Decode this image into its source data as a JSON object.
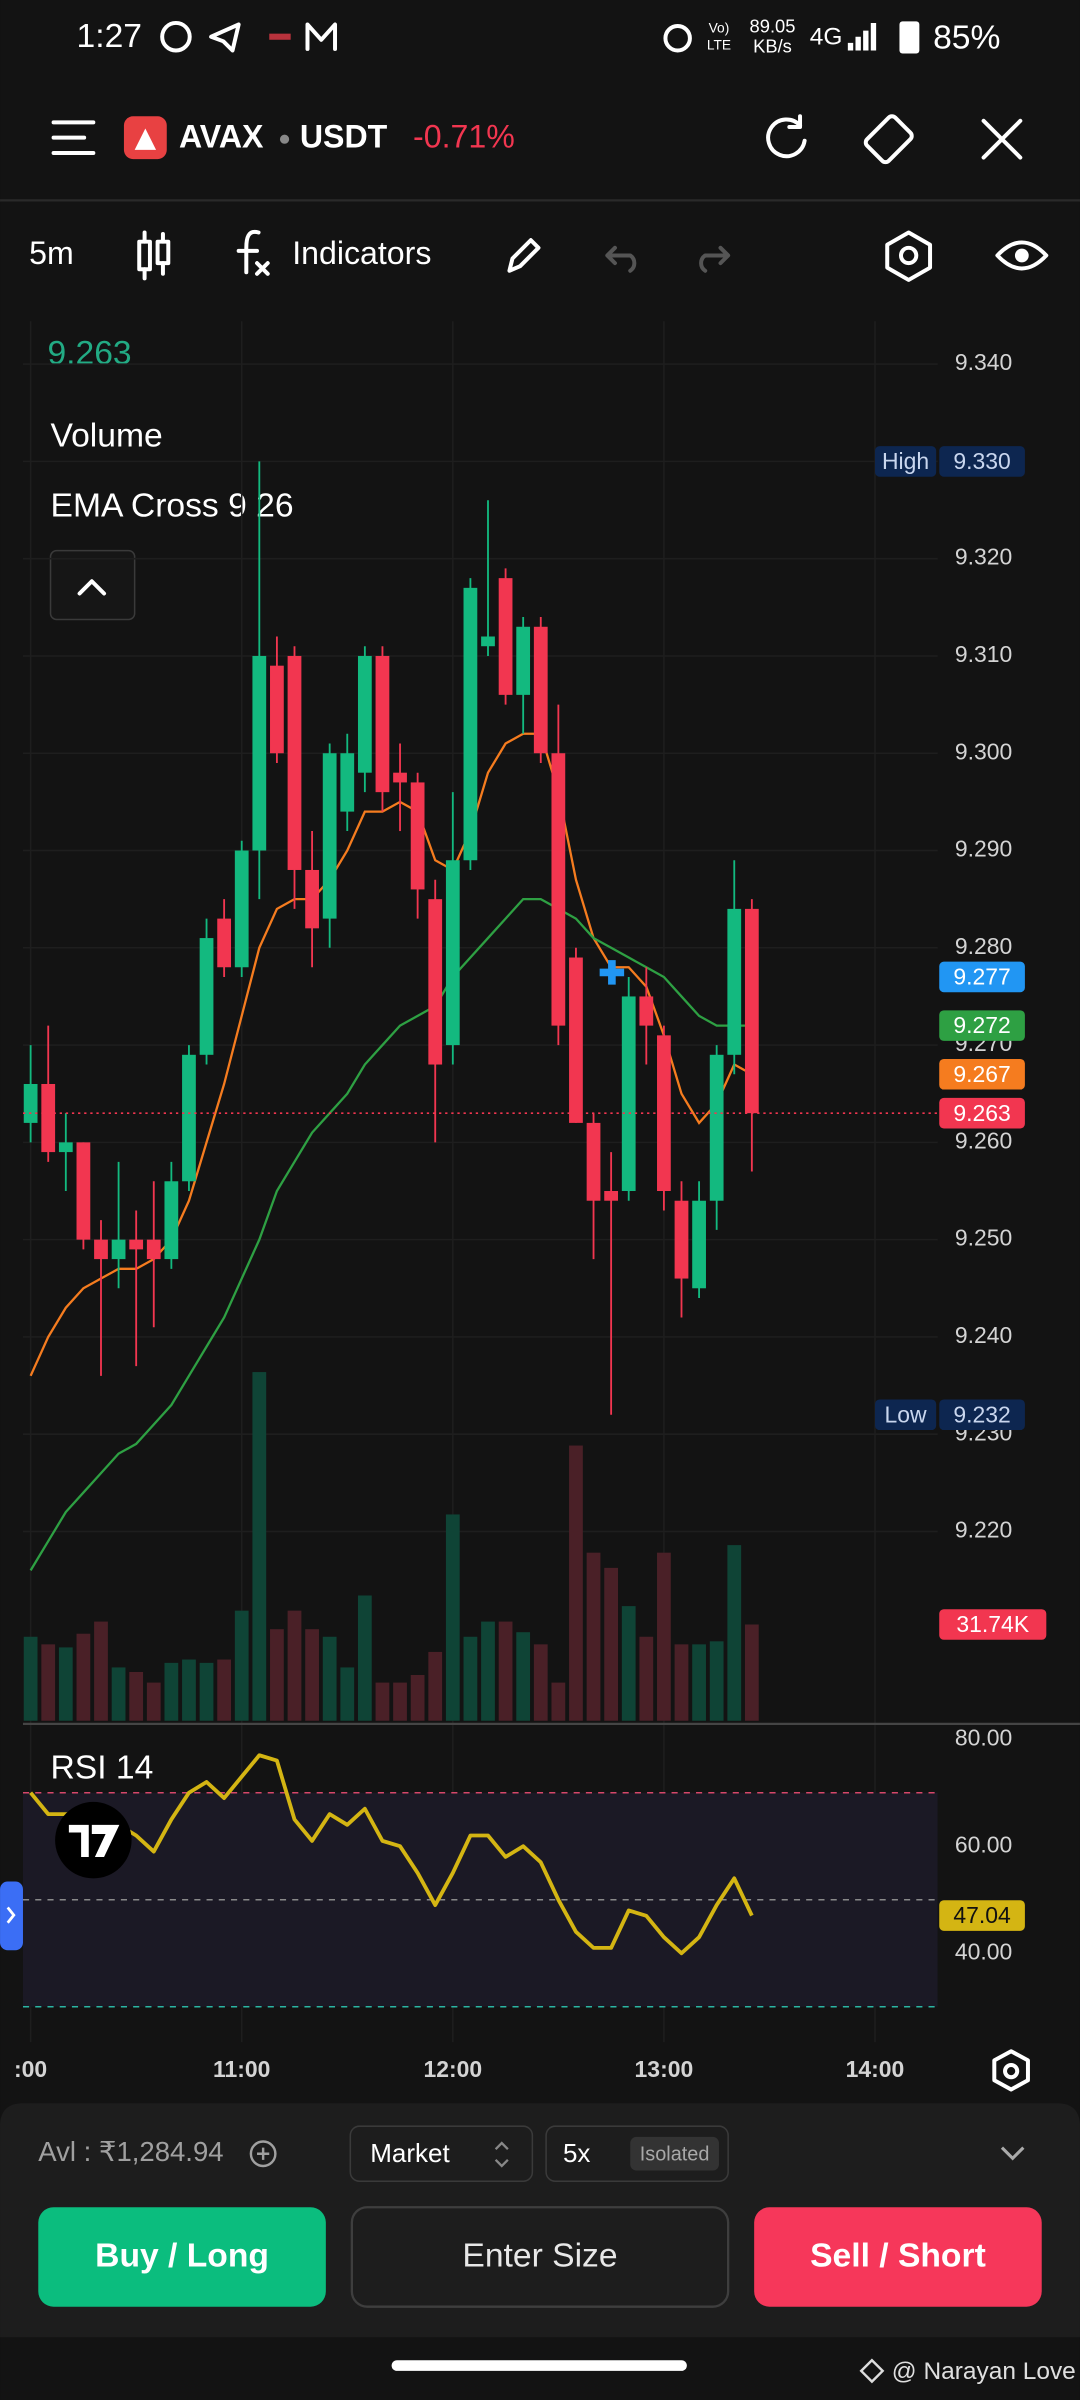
{
  "status_bar": {
    "time": "1:27",
    "volte": "Vo)",
    "lte": "LTE",
    "speed": "89.05",
    "speed_unit": "KB/s",
    "network": "4G",
    "battery": "85%"
  },
  "header": {
    "base": "AVAX",
    "quote": "USDT",
    "change": "-0.71%"
  },
  "toolbar": {
    "interval": "5m",
    "indicators": "Indicators"
  },
  "chart_data": [
    {
      "type": "candlestick",
      "up_color": "#13b97f",
      "down_color": "#f23650",
      "open": [
        9.262,
        9.266,
        9.259,
        9.26,
        9.25,
        9.248,
        9.25,
        9.25,
        9.248,
        9.256,
        9.269,
        9.283,
        9.278,
        9.29,
        9.309,
        9.31,
        9.288,
        9.283,
        9.294,
        9.298,
        9.31,
        9.298,
        9.297,
        9.285,
        9.27,
        9.289,
        9.311,
        9.318,
        9.306,
        9.313,
        9.3,
        9.279,
        9.262,
        9.255,
        9.255,
        9.275,
        9.271,
        9.254,
        9.245,
        9.254,
        9.269,
        9.284
      ],
      "high": [
        9.27,
        9.272,
        9.263,
        9.26,
        9.252,
        9.258,
        9.253,
        9.256,
        9.258,
        9.27,
        9.283,
        9.285,
        9.291,
        9.33,
        9.312,
        9.311,
        9.292,
        9.301,
        9.302,
        9.311,
        9.311,
        9.301,
        9.298,
        9.287,
        9.296,
        9.318,
        9.326,
        9.319,
        9.314,
        9.314,
        9.305,
        9.28,
        9.263,
        9.259,
        9.277,
        9.278,
        9.272,
        9.256,
        9.256,
        9.27,
        9.289,
        9.285
      ],
      "low": [
        9.26,
        9.258,
        9.255,
        9.249,
        9.236,
        9.245,
        9.237,
        9.241,
        9.247,
        9.255,
        9.268,
        9.277,
        9.277,
        9.285,
        9.299,
        9.284,
        9.278,
        9.28,
        9.292,
        9.296,
        9.294,
        9.292,
        9.283,
        9.26,
        9.268,
        9.288,
        9.31,
        9.305,
        9.302,
        9.299,
        9.27,
        9.262,
        9.248,
        9.232,
        9.254,
        9.268,
        9.253,
        9.242,
        9.244,
        9.251,
        9.267,
        9.257
      ],
      "close": [
        9.266,
        9.259,
        9.26,
        9.25,
        9.248,
        9.25,
        9.249,
        9.248,
        9.256,
        9.269,
        9.281,
        9.278,
        9.29,
        9.31,
        9.3,
        9.288,
        9.282,
        9.3,
        9.3,
        9.31,
        9.296,
        9.297,
        9.286,
        9.268,
        9.289,
        9.317,
        9.312,
        9.306,
        9.313,
        9.3,
        9.272,
        9.262,
        9.254,
        9.254,
        9.275,
        9.272,
        9.255,
        9.246,
        9.254,
        9.269,
        9.284,
        9.263
      ],
      "ylim": [
        9.2,
        9.344
      ],
      "yticks": [
        {
          "value": 9.34,
          "label": "9.340"
        },
        {
          "value": 9.33,
          "label": "9.330"
        },
        {
          "value": 9.32,
          "label": "9.320"
        },
        {
          "value": 9.31,
          "label": "9.310"
        },
        {
          "value": 9.3,
          "label": "9.300"
        },
        {
          "value": 9.29,
          "label": "9.290"
        },
        {
          "value": 9.28,
          "label": "9.280"
        },
        {
          "value": 9.27,
          "label": "9.270"
        },
        {
          "value": 9.26,
          "label": "9.260"
        },
        {
          "value": 9.25,
          "label": "9.250"
        },
        {
          "value": 9.24,
          "label": "9.240"
        },
        {
          "value": 9.23,
          "label": "9.230"
        },
        {
          "value": 9.22,
          "label": "9.220"
        }
      ],
      "xticks": [
        {
          "value": 0,
          "label": ":00"
        },
        {
          "value": 12,
          "label": "11:00"
        },
        {
          "value": 24,
          "label": "12:00"
        },
        {
          "value": 36,
          "label": "13:00"
        },
        {
          "value": 48,
          "label": "14:00"
        }
      ],
      "grid": true,
      "volume": {
        "title": "Volume",
        "up_color": "#0f4436",
        "down_color": "#4a2027",
        "values": [
          27.7,
          25.2,
          24.2,
          28.7,
          32.7,
          17.6,
          16.1,
          12.6,
          19.1,
          20.2,
          19.1,
          20.2,
          36.3,
          114.9,
          30.2,
          36.3,
          30.2,
          27.7,
          17.6,
          41.3,
          12.6,
          12.6,
          15.1,
          22.7,
          68,
          27.7,
          32.7,
          32.7,
          29.2,
          25.2,
          12.6,
          90.7,
          55.4,
          50.4,
          37.8,
          27.7,
          55.4,
          25.2,
          25.2,
          26.2,
          57.9,
          31.74
        ],
        "value_labels": [
          null,
          null,
          null,
          null,
          null,
          null,
          null,
          null,
          null,
          null,
          null,
          null,
          null,
          null,
          null,
          null,
          null,
          null,
          null,
          null,
          null,
          null,
          null,
          null,
          null,
          null,
          null,
          null,
          null,
          null,
          null,
          null,
          null,
          null,
          null,
          null,
          null,
          null,
          null,
          null,
          null,
          "31.74K"
        ]
      },
      "ema": {
        "title": "EMA Cross 9 26",
        "series": [
          {
            "color": "#f57c1f",
            "values": [
              9.236,
              9.24,
              9.243,
              9.245,
              9.246,
              9.247,
              9.247,
              9.248,
              9.25,
              9.254,
              9.26,
              9.266,
              9.273,
              9.28,
              9.284,
              9.285,
              9.285,
              9.287,
              9.29,
              9.294,
              9.294,
              9.295,
              9.294,
              9.289,
              9.288,
              9.292,
              9.298,
              9.301,
              9.302,
              9.302,
              9.296,
              9.287,
              9.281,
              9.278,
              9.278,
              9.276,
              9.271,
              9.265,
              9.262,
              9.264,
              9.268,
              9.267
            ]
          },
          {
            "color": "#2ea043",
            "values": [
              9.216,
              9.219,
              9.222,
              9.224,
              9.226,
              9.228,
              9.229,
              9.231,
              9.233,
              9.236,
              9.239,
              9.242,
              9.246,
              9.25,
              9.255,
              9.258,
              9.261,
              9.263,
              9.265,
              9.268,
              9.27,
              9.272,
              9.273,
              9.274,
              9.277,
              9.279,
              9.281,
              9.283,
              9.285,
              9.285,
              9.284,
              9.283,
              9.281,
              9.28,
              9.279,
              9.278,
              9.277,
              9.275,
              9.273,
              9.272,
              9.272,
              9.272
            ]
          }
        ]
      },
      "markers": [
        {
          "label": "High",
          "value": 9.33,
          "value_label": "9.330"
        },
        {
          "label": "Low",
          "value": 9.232
        }
      ],
      "crosshair": {
        "value": 9.277,
        "color": "#2196f3"
      }
    },
    {
      "type": "line",
      "title": "RSI 14",
      "color": "#d4b513",
      "values": [
        70,
        66,
        66,
        66,
        65,
        64,
        62,
        59,
        65,
        70,
        72,
        69,
        73,
        77,
        76,
        65,
        61,
        66,
        64,
        67,
        61,
        60,
        55,
        49,
        55,
        62,
        62,
        58,
        60,
        57,
        50,
        44,
        41,
        41,
        48,
        47,
        43,
        40,
        43,
        49,
        54,
        47.04
      ],
      "ylim": [
        23.4,
        82
      ],
      "yticks": [
        {
          "value": 80,
          "label": "80.00"
        },
        {
          "value": 60,
          "label": "60.00"
        },
        {
          "value": 40,
          "label": "40.00"
        }
      ],
      "bands": [
        {
          "value": 70,
          "color": "#d6476a"
        },
        {
          "value": 50,
          "color": "#8a8a8a"
        },
        {
          "value": 30,
          "color": "#2bb5a3"
        }
      ]
    }
  ],
  "trade_panel": {
    "available": "Avl : ₹1,284.94",
    "order_type": "Market",
    "leverage": "5x",
    "margin_mode": "Isolated",
    "buy": "Buy / Long",
    "size": "Enter Size",
    "sell": "Sell / Short"
  },
  "watermark": "@ Narayan Love"
}
